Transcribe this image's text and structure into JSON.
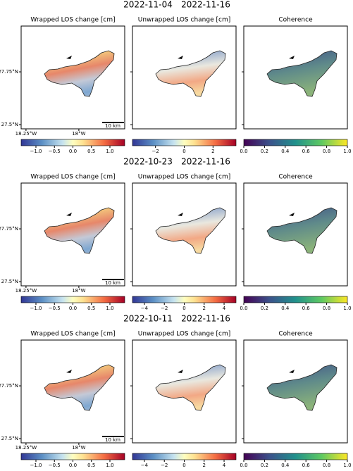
{
  "map": {
    "xlim": [
      -18.273,
      -17.783
    ],
    "ylim": [
      27.48,
      27.967
    ],
    "xticks": [
      {
        "value": -18.25,
        "label": "18.25°W"
      },
      {
        "value": -18,
        "label": "18°W"
      }
    ],
    "yticks": [
      {
        "value": 27.5,
        "label": "27.5°N"
      },
      {
        "value": 27.75,
        "label": "27.75°N"
      }
    ],
    "scalebar": "10 km"
  },
  "rows": [
    {
      "dates": [
        "2022-11-04",
        "2022-11-16"
      ],
      "panels": [
        {
          "title": "Wrapped LOS change [cm]",
          "cmap": "RdYlBu_r",
          "lim": [
            -1.4,
            1.4
          ],
          "ticks": [
            {
              "value": -1,
              "label": "−1.0"
            },
            {
              "value": -0.5,
              "label": "−0.5"
            },
            {
              "value": 0,
              "label": "0.0"
            },
            0.5,
            {
              "value": 1,
              "label": "1.0"
            }
          ]
        },
        {
          "title": "Unwrapped LOS change [cm]",
          "cmap": "RdYlBu_r",
          "lim": [
            -3.6,
            3.6
          ],
          "ticks": [
            {
              "value": -2,
              "label": "−2"
            },
            0,
            2
          ]
        },
        {
          "title": "Coherence",
          "cmap": "viridis",
          "lim": [
            0,
            1
          ],
          "ticks": [
            {
              "value": 0,
              "label": "0.0"
            },
            0.2,
            0.4,
            0.6,
            0.8,
            {
              "value": 1,
              "label": "1.0"
            }
          ]
        }
      ]
    },
    {
      "dates": [
        "2022-10-23",
        "2022-11-16"
      ],
      "panels": [
        {
          "title": "Wrapped LOS change [cm]",
          "cmap": "RdYlBu_r",
          "lim": [
            -1.4,
            1.4
          ],
          "ticks": [
            {
              "value": -1,
              "label": "−1.0"
            },
            {
              "value": -0.5,
              "label": "−0.5"
            },
            {
              "value": 0,
              "label": "0.0"
            },
            0.5,
            {
              "value": 1,
              "label": "1.0"
            }
          ]
        },
        {
          "title": "Unwrapped LOS change [cm]",
          "cmap": "RdYlBu_r",
          "lim": [
            -5.2,
            5.2
          ],
          "ticks": [
            {
              "value": -4,
              "label": "−4"
            },
            {
              "value": -2,
              "label": "−2"
            },
            0,
            2,
            4
          ]
        },
        {
          "title": "Coherence",
          "cmap": "viridis",
          "lim": [
            0,
            1
          ],
          "ticks": [
            {
              "value": 0,
              "label": "0.0"
            },
            0.2,
            0.4,
            0.6,
            0.8,
            {
              "value": 1,
              "label": "1.0"
            }
          ]
        }
      ]
    },
    {
      "dates": [
        "2022-10-11",
        "2022-11-16"
      ],
      "panels": [
        {
          "title": "Wrapped LOS change [cm]",
          "cmap": "RdYlBu_r",
          "lim": [
            -1.4,
            1.4
          ],
          "ticks": [
            {
              "value": -1,
              "label": "−1.0"
            },
            {
              "value": -0.5,
              "label": "−0.5"
            },
            {
              "value": 0,
              "label": "0.0"
            },
            0.5,
            {
              "value": 1,
              "label": "1.0"
            }
          ]
        },
        {
          "title": "Unwrapped LOS change [cm]",
          "cmap": "RdYlBu_r",
          "lim": [
            -5.2,
            5.2
          ],
          "ticks": [
            {
              "value": -4,
              "label": "−4"
            },
            {
              "value": -2,
              "label": "−2"
            },
            0,
            2,
            4
          ]
        },
        {
          "title": "Coherence",
          "cmap": "viridis",
          "lim": [
            0,
            1
          ],
          "ticks": [
            {
              "value": 0,
              "label": "0.0"
            },
            0.2,
            0.4,
            0.6,
            0.8,
            {
              "value": 1,
              "label": "1.0"
            }
          ]
        }
      ]
    }
  ]
}
